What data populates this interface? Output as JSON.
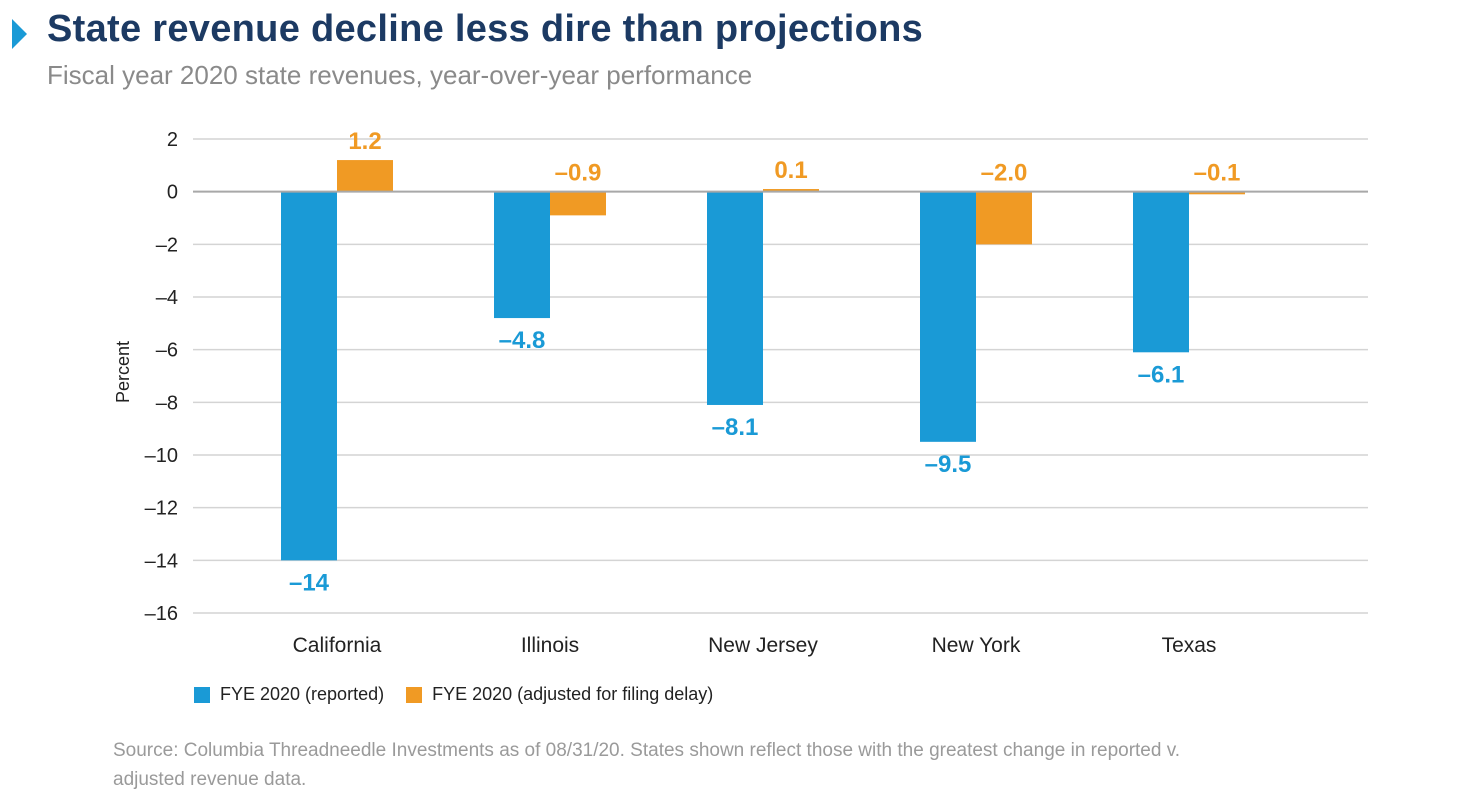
{
  "header": {
    "title": "State revenue decline less dire than projections",
    "subtitle": "Fiscal year 2020 state revenues, year-over-year performance"
  },
  "colors": {
    "title": "#1c3a63",
    "marker": "#1a9ad6",
    "reported": "#1a9ad6",
    "adjusted": "#f09a24",
    "grid": "#d4d4d4",
    "text": "#222222",
    "muted": "#9a9a9a"
  },
  "chart_data": {
    "type": "bar",
    "title": "State revenue decline less dire than projections",
    "subtitle": "Fiscal year 2020 state revenues, year-over-year performance",
    "xlabel": "",
    "ylabel": "Percent",
    "ylim": [
      -16,
      2
    ],
    "yticks": [
      2,
      0,
      -2,
      -4,
      -6,
      -8,
      -10,
      -12,
      -14,
      -16
    ],
    "ytick_labels": [
      "2",
      "0",
      "–2",
      "–4",
      "–6",
      "–8",
      "–10",
      "–12",
      "–14",
      "–16"
    ],
    "grid": true,
    "legend_position": "bottom-left",
    "categories": [
      "California",
      "Illinois",
      "New Jersey",
      "New York",
      "Texas"
    ],
    "series": [
      {
        "name": "FYE 2020 (reported)",
        "values": [
          -14,
          -4.8,
          -8.1,
          -9.5,
          -6.1
        ],
        "labels": [
          "–14",
          "–4.8",
          "–8.1",
          "–9.5",
          "–6.1"
        ]
      },
      {
        "name": "FYE 2020 (adjusted for filing delay)",
        "values": [
          1.2,
          -0.9,
          0.1,
          -2.0,
          -0.1
        ],
        "labels": [
          "1.2",
          "–0.9",
          "0.1",
          "–2.0",
          "–0.1"
        ]
      }
    ]
  },
  "source": "Source: Columbia Threadneedle Investments as of 08/31/20. States shown reflect those with the greatest change in reported v. adjusted revenue data."
}
